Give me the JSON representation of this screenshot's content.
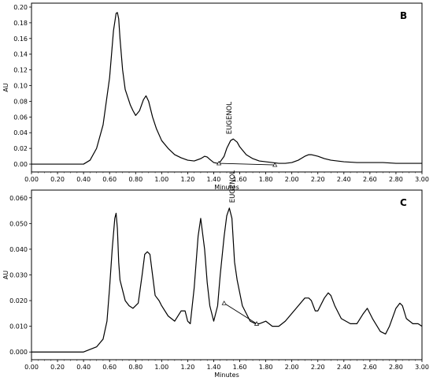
{
  "chart_data": [
    {
      "type": "line",
      "panel_label": "B",
      "title": "",
      "xlabel": "Minutes",
      "ylabel": "AU",
      "xlim": [
        0,
        3
      ],
      "ylim": [
        -0.01,
        0.205
      ],
      "x_ticks": [
        0,
        0.2,
        0.4,
        0.6,
        0.8,
        1.0,
        1.2,
        1.4,
        1.6,
        1.8,
        2.0,
        2.2,
        2.4,
        2.6,
        2.8,
        3.0
      ],
      "x_tick_labels": [
        "0.00",
        "0.20",
        "0.40",
        "0.60",
        "0.80",
        "1.00",
        "1.20",
        "1.40",
        "1.60",
        "1.80",
        "2.00",
        "2.20",
        "2.40",
        "2.60",
        "2.80",
        "3.00"
      ],
      "y_ticks": [
        0,
        0.02,
        0.04,
        0.06,
        0.08,
        0.1,
        0.12,
        0.14,
        0.16,
        0.18,
        0.2
      ],
      "y_tick_labels": [
        "0.00",
        "0.02",
        "0.04",
        "0.06",
        "0.08",
        "0.10",
        "0.12",
        "0.14",
        "0.16",
        "0.18",
        "0.20"
      ],
      "grid": false,
      "series": [
        {
          "x": [
            0.0,
            0.4,
            0.45,
            0.5,
            0.55,
            0.6,
            0.63,
            0.65,
            0.66,
            0.67,
            0.68,
            0.7,
            0.72,
            0.74,
            0.76,
            0.78,
            0.8,
            0.83,
            0.86,
            0.88,
            0.9,
            0.93,
            0.96,
            1.0,
            1.05,
            1.1,
            1.15,
            1.2,
            1.25,
            1.3,
            1.33,
            1.35,
            1.37,
            1.4,
            1.43,
            1.45,
            1.48,
            1.5,
            1.53,
            1.55,
            1.58,
            1.6,
            1.65,
            1.7,
            1.75,
            1.8,
            1.85,
            1.9,
            1.95,
            2.0,
            2.05,
            2.1,
            2.13,
            2.15,
            2.2,
            2.25,
            2.3,
            2.4,
            2.5,
            2.6,
            2.7,
            2.8,
            2.9,
            3.0
          ],
          "values": [
            0.0,
            0.0,
            0.005,
            0.02,
            0.05,
            0.11,
            0.17,
            0.192,
            0.193,
            0.185,
            0.16,
            0.12,
            0.095,
            0.085,
            0.075,
            0.068,
            0.062,
            0.068,
            0.082,
            0.087,
            0.08,
            0.06,
            0.045,
            0.03,
            0.02,
            0.012,
            0.008,
            0.005,
            0.004,
            0.007,
            0.01,
            0.009,
            0.006,
            0.002,
            0.001,
            0.003,
            0.01,
            0.02,
            0.03,
            0.032,
            0.028,
            0.022,
            0.012,
            0.007,
            0.004,
            0.003,
            0.002,
            0.001,
            0.001,
            0.002,
            0.005,
            0.01,
            0.012,
            0.012,
            0.01,
            0.007,
            0.005,
            0.003,
            0.002,
            0.002,
            0.002,
            0.001,
            0.001,
            0.001
          ]
        }
      ],
      "baselines": [
        {
          "x": [
            1.44,
            1.87
          ],
          "values": [
            0.001,
            -0.001
          ]
        }
      ],
      "annotations": [
        {
          "text": "EUGENOL",
          "x": 1.535,
          "value": 0.038,
          "rotation": -90
        }
      ]
    },
    {
      "type": "line",
      "panel_label": "C",
      "title": "",
      "xlabel": "Minutes",
      "ylabel": "AU",
      "xlim": [
        0,
        3
      ],
      "ylim": [
        -0.003,
        0.063
      ],
      "x_ticks": [
        0,
        0.2,
        0.4,
        0.6,
        0.8,
        1.0,
        1.2,
        1.4,
        1.6,
        1.8,
        2.0,
        2.2,
        2.4,
        2.6,
        2.8,
        3.0
      ],
      "x_tick_labels": [
        "0.00",
        "0.20",
        "0.40",
        "0.60",
        "0.80",
        "1.00",
        "1.20",
        "1.40",
        "1.60",
        "1.80",
        "2.00",
        "2.20",
        "2.40",
        "2.60",
        "2.80",
        "3.00"
      ],
      "y_ticks": [
        0,
        0.01,
        0.02,
        0.03,
        0.04,
        0.05,
        0.06
      ],
      "y_tick_labels": [
        "0.000",
        "0.010",
        "0.020",
        "0.030",
        "0.040",
        "0.050",
        "0.060"
      ],
      "grid": false,
      "series": [
        {
          "x": [
            0.0,
            0.4,
            0.45,
            0.5,
            0.55,
            0.58,
            0.6,
            0.62,
            0.64,
            0.65,
            0.66,
            0.67,
            0.68,
            0.7,
            0.72,
            0.75,
            0.78,
            0.82,
            0.85,
            0.87,
            0.89,
            0.91,
            0.93,
            0.95,
            0.98,
            1.0,
            1.05,
            1.1,
            1.15,
            1.18,
            1.2,
            1.22,
            1.25,
            1.28,
            1.3,
            1.33,
            1.35,
            1.37,
            1.4,
            1.43,
            1.45,
            1.48,
            1.5,
            1.52,
            1.54,
            1.56,
            1.58,
            1.6,
            1.62,
            1.65,
            1.68,
            1.72,
            1.75,
            1.8,
            1.85,
            1.9,
            1.95,
            2.0,
            2.05,
            2.1,
            2.13,
            2.15,
            2.18,
            2.2,
            2.25,
            2.28,
            2.3,
            2.33,
            2.38,
            2.45,
            2.5,
            2.55,
            2.58,
            2.62,
            2.68,
            2.72,
            2.75,
            2.8,
            2.83,
            2.85,
            2.88,
            2.93,
            2.97,
            3.0
          ],
          "values": [
            0.0,
            0.0,
            0.001,
            0.002,
            0.005,
            0.012,
            0.025,
            0.04,
            0.052,
            0.054,
            0.048,
            0.035,
            0.028,
            0.024,
            0.02,
            0.018,
            0.017,
            0.019,
            0.03,
            0.038,
            0.039,
            0.038,
            0.03,
            0.022,
            0.02,
            0.018,
            0.014,
            0.012,
            0.016,
            0.016,
            0.012,
            0.011,
            0.025,
            0.045,
            0.052,
            0.04,
            0.027,
            0.018,
            0.012,
            0.018,
            0.03,
            0.045,
            0.053,
            0.056,
            0.052,
            0.035,
            0.028,
            0.023,
            0.018,
            0.015,
            0.012,
            0.011,
            0.011,
            0.012,
            0.01,
            0.01,
            0.012,
            0.015,
            0.018,
            0.021,
            0.021,
            0.02,
            0.016,
            0.016,
            0.021,
            0.023,
            0.022,
            0.018,
            0.013,
            0.011,
            0.011,
            0.015,
            0.017,
            0.013,
            0.008,
            0.007,
            0.01,
            0.017,
            0.019,
            0.018,
            0.013,
            0.011,
            0.011,
            0.01
          ]
        }
      ],
      "baselines": [
        {
          "x": [
            1.48,
            1.73
          ],
          "values": [
            0.019,
            0.011
          ]
        }
      ],
      "annotations": [
        {
          "text": "EUGENOL",
          "x": 1.56,
          "value": 0.058,
          "rotation": -90
        }
      ]
    }
  ]
}
